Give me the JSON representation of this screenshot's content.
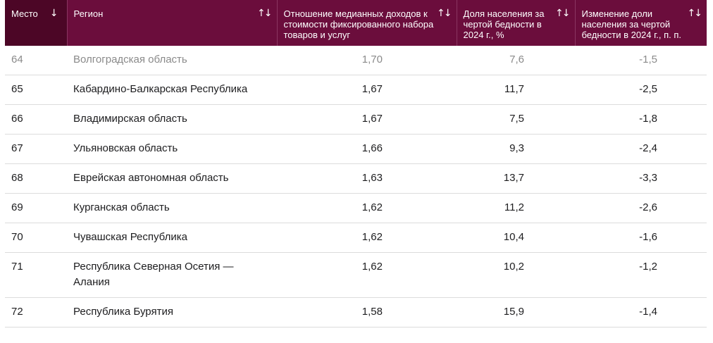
{
  "headers": {
    "place": "Место",
    "region": "Регион",
    "ratio": "Отношение медианных доходов к стоимости фиксированного набора товаров и услуг",
    "share": "Доля населения за чертой бедности в 2024 г., %",
    "change": "Изменение доли населения за чертой бедности в 2024 г., п. п."
  },
  "icons": {
    "sort_active": "arrow-down",
    "sort_both": "arrows-up-down"
  },
  "colors": {
    "header_bg": "#6b0d3c",
    "header_active_bg": "#4c0626",
    "header_text": "#ffffff",
    "faded_text": "#8a8a8a"
  },
  "rows": [
    {
      "place": "64",
      "region": "Волгоградская область",
      "ratio": "1,70",
      "share": "7,6",
      "change": "-1,5"
    },
    {
      "place": "65",
      "region": "Кабардино-Балкарская Республика",
      "ratio": "1,67",
      "share": "11,7",
      "change": "-2,5"
    },
    {
      "place": "66",
      "region": "Владимирская область",
      "ratio": "1,67",
      "share": "7,5",
      "change": "-1,8"
    },
    {
      "place": "67",
      "region": "Ульяновская область",
      "ratio": "1,66",
      "share": "9,3",
      "change": "-2,4"
    },
    {
      "place": "68",
      "region": "Еврейская автономная область",
      "ratio": "1,63",
      "share": "13,7",
      "change": "-3,3"
    },
    {
      "place": "69",
      "region": "Курганская область",
      "ratio": "1,62",
      "share": "11,2",
      "change": "-2,6"
    },
    {
      "place": "70",
      "region": "Чувашская Республика",
      "ratio": "1,62",
      "share": "10,4",
      "change": "-1,6"
    },
    {
      "place": "71",
      "region": "Республика Северная Осетия — Алания",
      "ratio": "1,62",
      "share": "10,2",
      "change": "-1,2"
    },
    {
      "place": "72",
      "region": "Республика Бурятия",
      "ratio": "1,58",
      "share": "15,9",
      "change": "-1,4"
    }
  ]
}
